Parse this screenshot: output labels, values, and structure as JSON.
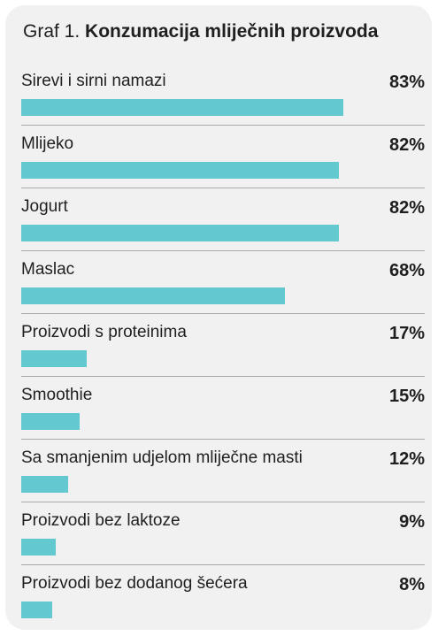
{
  "header": {
    "prefix": "Graf 1.",
    "title": "Konzumacija mliječnih proizvoda"
  },
  "colors": {
    "bar": "#63c8d0",
    "background": "#f1f1f1",
    "divider": "#a9a9a9",
    "text": "#1f1f1f"
  },
  "chart_data": {
    "type": "bar",
    "orientation": "horizontal",
    "title": "Konzumacija mliječnih proizvoda",
    "categories": [
      "Sirevi i sirni namazi",
      "Mlijeko",
      "Jogurt",
      "Maslac",
      "Proizvodi s proteinima",
      "Smoothie",
      "Sa smanjenim udjelom mliječne masti",
      "Proizvodi bez laktoze",
      "Proizvodi bez dodanog šećera"
    ],
    "values": [
      83,
      82,
      82,
      68,
      17,
      15,
      12,
      9,
      8
    ],
    "value_labels": [
      "83%",
      "82%",
      "82%",
      "68%",
      "17%",
      "15%",
      "12%",
      "9%",
      "8%"
    ],
    "unit": "%",
    "xlim": [
      0,
      100
    ],
    "grid": false
  }
}
